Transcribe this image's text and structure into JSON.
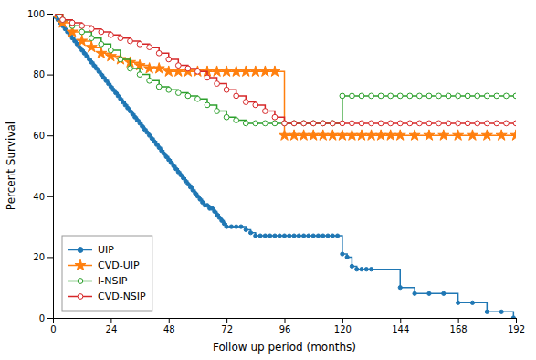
{
  "chart_data": {
    "type": "step",
    "xlabel": "Follow up period (months)",
    "ylabel": "Percent Survival",
    "xlim": [
      0,
      192
    ],
    "ylim": [
      0,
      100
    ],
    "xticks": [
      0,
      24,
      48,
      72,
      96,
      120,
      144,
      168,
      192
    ],
    "yticks": [
      0,
      20,
      40,
      60,
      80,
      100
    ],
    "grid": false,
    "legend": "lower left",
    "series": [
      {
        "name": "UIP",
        "marker": "circle",
        "x": [
          0,
          1,
          2,
          3,
          4,
          5,
          6,
          7,
          8,
          9,
          10,
          11,
          12,
          13,
          14,
          15,
          16,
          17,
          18,
          19,
          20,
          21,
          22,
          23,
          24,
          25,
          26,
          27,
          28,
          29,
          30,
          31,
          32,
          33,
          34,
          35,
          36,
          37,
          38,
          39,
          40,
          41,
          42,
          43,
          44,
          45,
          46,
          47,
          48,
          49,
          50,
          51,
          52,
          53,
          54,
          55,
          56,
          57,
          58,
          59,
          60,
          61,
          62,
          63,
          64,
          65,
          66,
          67,
          68,
          69,
          70,
          71,
          72,
          74,
          76,
          78,
          80,
          82,
          84,
          86,
          88,
          90,
          92,
          94,
          96,
          98,
          100,
          102,
          104,
          106,
          108,
          110,
          112,
          114,
          116,
          118,
          120,
          122,
          124,
          126,
          128,
          130,
          132,
          144,
          150,
          156,
          162,
          168,
          174,
          180,
          186,
          191
        ],
        "values": [
          100,
          99,
          98,
          97,
          96,
          95,
          94,
          93,
          92,
          91,
          90,
          89,
          88,
          87,
          86,
          85,
          84,
          83,
          82,
          81,
          80,
          79,
          78,
          77,
          76,
          75,
          74,
          73,
          72,
          71,
          70,
          69,
          68,
          67,
          66,
          65,
          64,
          63,
          62,
          61,
          60,
          59,
          58,
          57,
          56,
          55,
          54,
          53,
          52,
          51,
          50,
          49,
          48,
          47,
          46,
          45,
          44,
          43,
          42,
          41,
          40,
          39,
          38,
          37,
          37,
          36,
          36,
          35,
          34,
          33,
          32,
          31,
          30,
          30,
          30,
          30,
          29,
          28,
          27,
          27,
          27,
          27,
          27,
          27,
          27,
          27,
          27,
          27,
          27,
          27,
          27,
          27,
          27,
          27,
          27,
          27,
          21,
          20,
          17,
          16,
          16,
          16,
          16,
          10,
          8,
          8,
          8,
          5,
          5,
          2,
          2,
          0
        ]
      },
      {
        "name": "CVD-UIP",
        "marker": "star",
        "x": [
          0,
          4,
          8,
          12,
          16,
          20,
          24,
          28,
          32,
          36,
          40,
          44,
          48,
          52,
          56,
          60,
          64,
          68,
          72,
          76,
          80,
          84,
          88,
          92,
          96,
          100,
          104,
          108,
          112,
          116,
          120,
          124,
          128,
          132,
          136,
          140,
          144,
          150,
          156,
          162,
          168,
          174,
          180,
          186,
          192
        ],
        "values": [
          100,
          97,
          94,
          91,
          89,
          87,
          86,
          85,
          84,
          83,
          82,
          82,
          81,
          81,
          81,
          81,
          81,
          81,
          81,
          81,
          81,
          81,
          81,
          81,
          60,
          60,
          60,
          60,
          60,
          60,
          60,
          60,
          60,
          60,
          60,
          60,
          60,
          60,
          60,
          60,
          60,
          60,
          60,
          60,
          60
        ]
      },
      {
        "name": "I-NSIP",
        "marker": "open-circle",
        "x": [
          0,
          4,
          8,
          12,
          16,
          20,
          24,
          28,
          32,
          36,
          40,
          44,
          48,
          52,
          56,
          60,
          64,
          68,
          72,
          76,
          80,
          84,
          88,
          92,
          96,
          100,
          104,
          108,
          112,
          116,
          120,
          124,
          128,
          132,
          136,
          140,
          144,
          148,
          152,
          156,
          160,
          164,
          168,
          172,
          176,
          180,
          184,
          188,
          192
        ],
        "values": [
          100,
          98,
          96,
          94,
          92,
          90,
          88,
          85,
          82,
          80,
          78,
          76,
          75,
          74,
          73,
          72,
          70,
          68,
          66,
          65,
          64,
          64,
          64,
          64,
          64,
          64,
          64,
          64,
          64,
          64,
          73,
          73,
          73,
          73,
          73,
          73,
          73,
          73,
          73,
          73,
          73,
          73,
          73,
          73,
          73,
          73,
          73,
          73,
          73
        ]
      },
      {
        "name": "CVD-NSIP",
        "marker": "open-circle",
        "x": [
          0,
          4,
          8,
          12,
          16,
          20,
          24,
          28,
          32,
          36,
          40,
          44,
          48,
          52,
          56,
          60,
          64,
          68,
          72,
          76,
          80,
          84,
          88,
          92,
          96,
          100,
          104,
          108,
          112,
          116,
          120,
          124,
          128,
          132,
          136,
          140,
          144,
          148,
          152,
          156,
          160,
          164,
          168,
          172,
          176,
          180,
          184,
          188,
          192
        ],
        "values": [
          100,
          98,
          97,
          96,
          95,
          94,
          93,
          92,
          91,
          90,
          89,
          87,
          85,
          83,
          82,
          81,
          79,
          77,
          75,
          73,
          71,
          70,
          68,
          66,
          64,
          64,
          64,
          64,
          64,
          64,
          64,
          64,
          64,
          64,
          64,
          64,
          64,
          64,
          64,
          64,
          64,
          64,
          64,
          64,
          64,
          64,
          64,
          64,
          64
        ]
      }
    ]
  }
}
